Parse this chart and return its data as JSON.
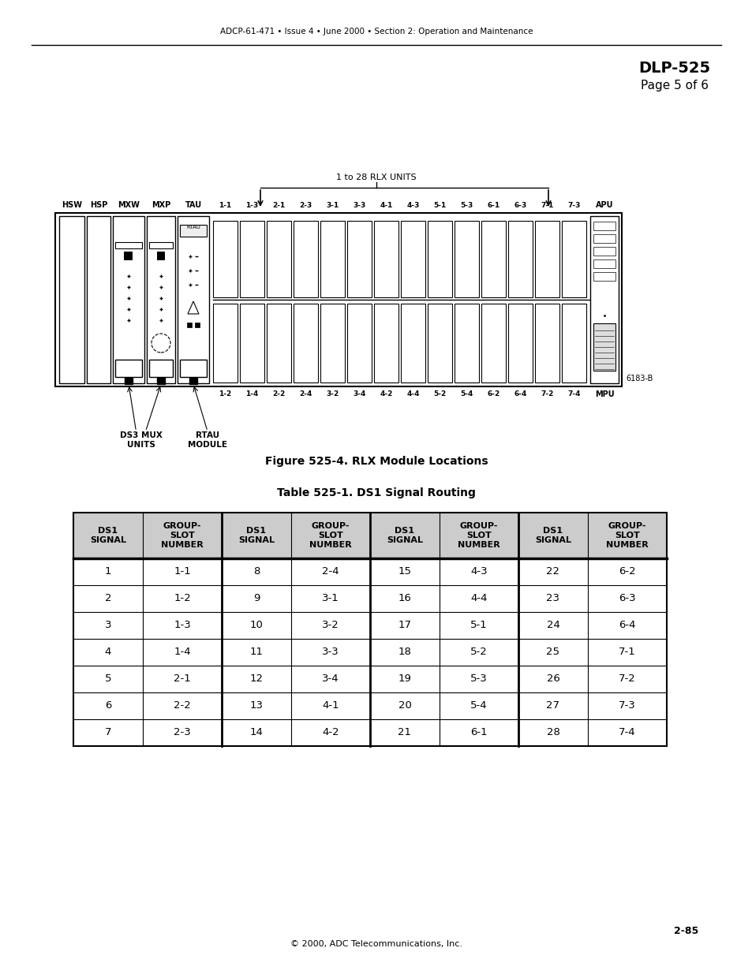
{
  "header_text": "ADCP-61-471 • Issue 4 • June 2000 • Section 2: Operation and Maintenance",
  "title_right": "DLP-525",
  "subtitle_right": "Page 5 of 6",
  "figure_caption": "Figure 525-4. RLX Module Locations",
  "table_title": "Table 525-1. DS1 Signal Routing",
  "footer_page": "2-85",
  "footer_copy": "© 2000, ADC Telecommunications, Inc.",
  "rlx_label": "1 to 28 RLX UNITS",
  "diagram_ref": "6183-B",
  "ds3_label": "DS3 MUX\nUNITS",
  "rtau_label": "RTAU\nMODULE",
  "table_headers": [
    "DS1\nSIGNAL",
    "GROUP-\nSLOT\nNUMBER",
    "DS1\nSIGNAL",
    "GROUP-\nSLOT\nNUMBER",
    "DS1\nSIGNAL",
    "GROUP-\nSLOT\nNUMBER",
    "DS1\nSIGNAL",
    "GROUP-\nSLOT\nNUMBER"
  ],
  "table_data": [
    [
      "1",
      "1-1",
      "8",
      "2-4",
      "15",
      "4-3",
      "22",
      "6-2"
    ],
    [
      "2",
      "1-2",
      "9",
      "3-1",
      "16",
      "4-4",
      "23",
      "6-3"
    ],
    [
      "3",
      "1-3",
      "10",
      "3-2",
      "17",
      "5-1",
      "24",
      "6-4"
    ],
    [
      "4",
      "1-4",
      "11",
      "3-3",
      "18",
      "5-2",
      "25",
      "7-1"
    ],
    [
      "5",
      "2-1",
      "12",
      "3-4",
      "19",
      "5-3",
      "26",
      "7-2"
    ],
    [
      "6",
      "2-2",
      "13",
      "4-1",
      "20",
      "5-4",
      "27",
      "7-3"
    ],
    [
      "7",
      "2-3",
      "14",
      "4-2",
      "21",
      "6-1",
      "28",
      "7-4"
    ]
  ],
  "header_bg": "#cccccc",
  "table_border": "#000000",
  "page_bg": "#ffffff"
}
